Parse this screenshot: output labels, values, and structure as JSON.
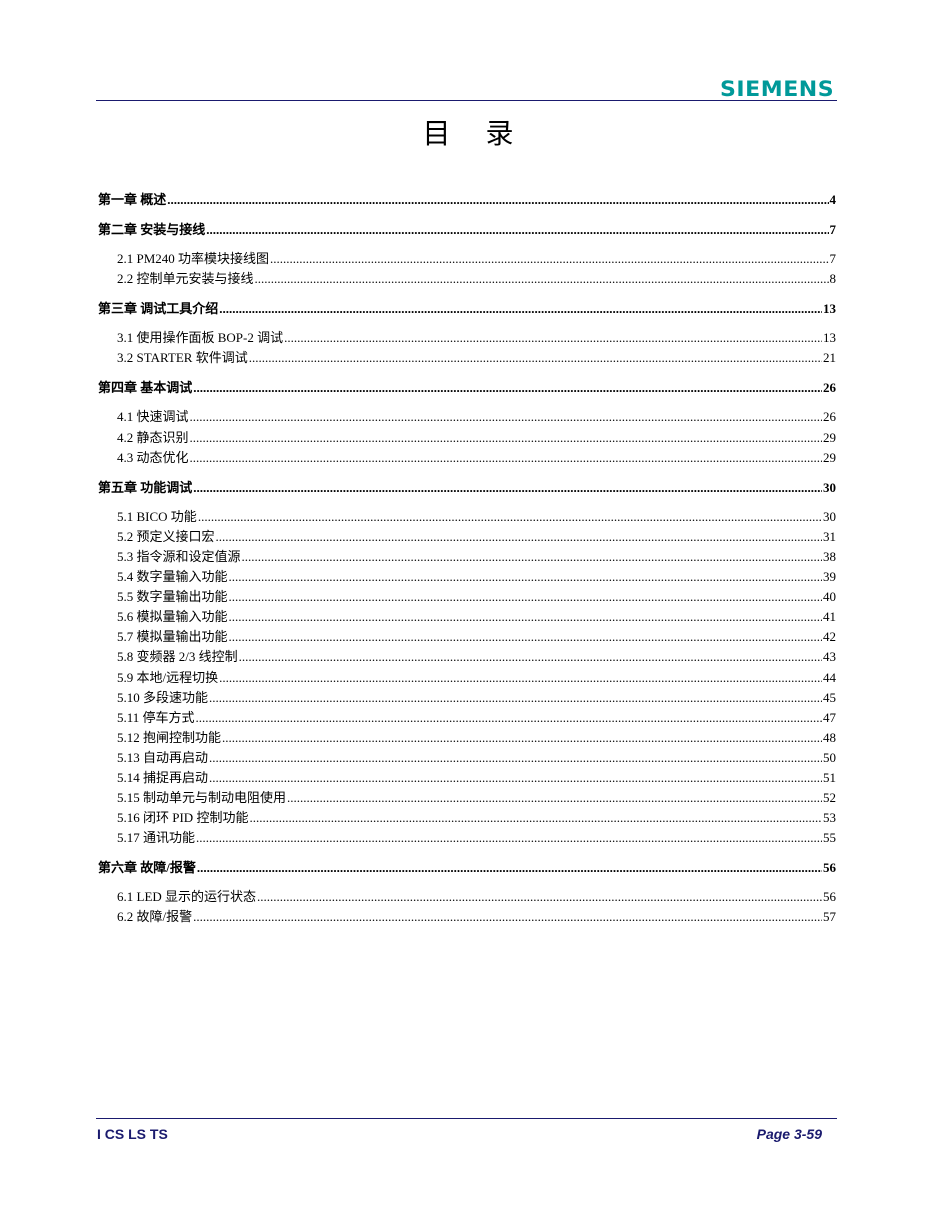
{
  "header": {
    "logo": "SIEMENS",
    "brand_color": "#009999",
    "rule_color": "#1a1a6e"
  },
  "title": "目 录",
  "toc": [
    {
      "level": 1,
      "label": "第一章  概述",
      "page": "4"
    },
    {
      "level": 1,
      "label": "第二章  安装与接线",
      "page": "7"
    },
    {
      "level": 2,
      "label": "2.1 PM240 功率模块接线图",
      "page": "7"
    },
    {
      "level": 2,
      "label": "2.2 控制单元安装与接线",
      "page": "8"
    },
    {
      "level": 1,
      "label": "第三章  调试工具介绍",
      "page": "13"
    },
    {
      "level": 2,
      "label": "3.1 使用操作面板 BOP-2 调试",
      "page": "13"
    },
    {
      "level": 2,
      "label": "3.2 STARTER 软件调试",
      "page": "21"
    },
    {
      "level": 1,
      "label": "第四章  基本调试",
      "page": "26"
    },
    {
      "level": 2,
      "label": "4.1 快速调试",
      "page": "26"
    },
    {
      "level": 2,
      "label": "4.2 静态识别",
      "page": "29"
    },
    {
      "level": 2,
      "label": "4.3 动态优化",
      "page": "29"
    },
    {
      "level": 1,
      "label": "第五章  功能调试",
      "page": "30"
    },
    {
      "level": 2,
      "label": "5.1 BICO 功能",
      "page": "30"
    },
    {
      "level": 2,
      "label": "5.2 预定义接口宏",
      "page": "31"
    },
    {
      "level": 2,
      "label": "5.3 指令源和设定值源",
      "page": "38"
    },
    {
      "level": 2,
      "label": "5.4 数字量输入功能",
      "page": "39"
    },
    {
      "level": 2,
      "label": "5.5 数字量输出功能",
      "page": "40"
    },
    {
      "level": 2,
      "label": "5.6 模拟量输入功能",
      "page": "41"
    },
    {
      "level": 2,
      "label": "5.7 模拟量输出功能",
      "page": "42"
    },
    {
      "level": 2,
      "label": "5.8 变频器 2/3 线控制",
      "page": "43"
    },
    {
      "level": 2,
      "label": "5.9 本地/远程切换",
      "page": "44"
    },
    {
      "level": 2,
      "label": "5.10 多段速功能",
      "page": "45"
    },
    {
      "level": 2,
      "label": "5.11 停车方式",
      "page": "47"
    },
    {
      "level": 2,
      "label": "5.12 抱闸控制功能",
      "page": "48"
    },
    {
      "level": 2,
      "label": "5.13 自动再启动",
      "page": "50"
    },
    {
      "level": 2,
      "label": "5.14 捕捉再启动",
      "page": "51"
    },
    {
      "level": 2,
      "label": "5.15 制动单元与制动电阻使用",
      "page": "52"
    },
    {
      "level": 2,
      "label": "5.16 闭环 PID 控制功能",
      "page": "53"
    },
    {
      "level": 2,
      "label": "5.17 通讯功能",
      "page": "55"
    },
    {
      "level": 1,
      "label": "第六章  故障/报警",
      "page": "56"
    },
    {
      "level": 2,
      "label": "6.1 LED 显示的运行状态",
      "page": "56"
    },
    {
      "level": 2,
      "label": "6.2 故障/报警",
      "page": "57"
    }
  ],
  "footer": {
    "left": "I CS LS TS",
    "right": "Page 3-59"
  }
}
